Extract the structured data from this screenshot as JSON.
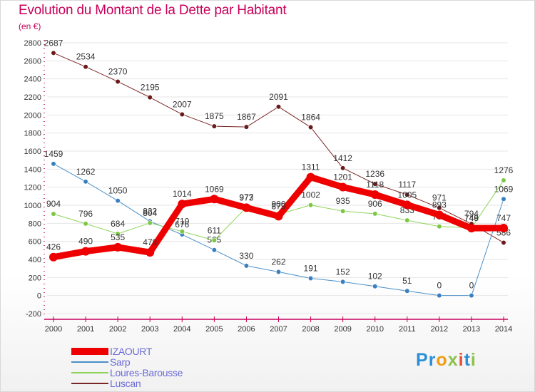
{
  "header": {
    "title": "Evolution du Montant de la Dette par Habitant",
    "subtitle": "(en €)"
  },
  "logo": {
    "text": "Proxiti"
  },
  "colors": {
    "title": "#c8005a",
    "axis": "#c8005a",
    "grid": "#e6e6e6",
    "label": "#333333",
    "legend_text": "#6b6bd6"
  },
  "chart_data": {
    "type": "line",
    "title": "Evolution du Montant de la Dette par Habitant",
    "ylabel": "(en €)",
    "xlabel": "",
    "ylim": [
      -200,
      2800
    ],
    "yticks": [
      -200,
      0,
      200,
      400,
      600,
      800,
      1000,
      1200,
      1400,
      1600,
      1800,
      2000,
      2200,
      2400,
      2600,
      2800
    ],
    "grid": true,
    "legend_position": "bottom-left",
    "categories": [
      "2000",
      "2001",
      "2002",
      "2003",
      "2004",
      "2005",
      "2006",
      "2007",
      "2008",
      "2009",
      "2010",
      "2011",
      "2012",
      "2013",
      "2014"
    ],
    "series": [
      {
        "name": "Luscan",
        "color": "#7a2626",
        "marker": "#6b1a1a",
        "width": 1,
        "values": [
          2687,
          2534,
          2370,
          2195,
          2007,
          1875,
          1867,
          2091,
          1864,
          1412,
          1236,
          1117,
          971,
          794,
          586
        ]
      },
      {
        "name": "Sarp",
        "color": "#4a90c8",
        "marker": "#3a80c0",
        "width": 1,
        "values": [
          1459,
          1262,
          1050,
          822,
          676,
          505,
          330,
          262,
          191,
          152,
          102,
          51,
          0,
          0,
          1069
        ]
      },
      {
        "name": "Loures-Barousse",
        "color": "#8fd45a",
        "marker": "#7cc843",
        "width": 1,
        "values": [
          904,
          796,
          684,
          804,
          710,
          611,
          977,
          900,
          1002,
          935,
          906,
          833,
          765,
          749,
          1276
        ]
      },
      {
        "name": "IZAOURT",
        "color": "#ee0000",
        "marker": "#ee0000",
        "width": 9,
        "values": [
          426,
          490,
          535,
          478,
          1014,
          1069,
          973,
          879,
          1311,
          1201,
          1118,
          1005,
          893,
          746,
          747
        ]
      }
    ],
    "legend_order": [
      "IZAOURT",
      "Sarp",
      "Loures-Barousse",
      "Luscan"
    ]
  }
}
